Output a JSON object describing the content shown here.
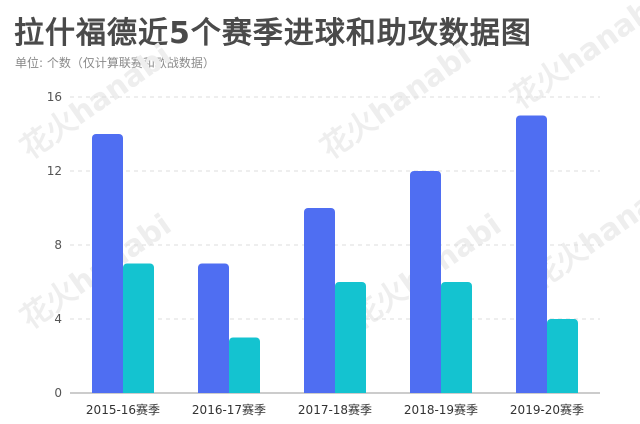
{
  "title": "拉什福德近5个赛季进球和助攻数据图",
  "subtitle": "单位: 个数（仅计算联赛和欧战数据）",
  "watermark": "花火hanabi",
  "colors": {
    "goals": "#4f6ef2",
    "assists": "#14c3d0",
    "grid": "#dddddd",
    "axis": "#999999",
    "title": "#4a4a4a"
  },
  "chart_data": {
    "type": "bar",
    "categories": [
      "2015-16赛季",
      "2016-17赛季",
      "2017-18赛季",
      "2018-19赛季",
      "2019-20赛季"
    ],
    "series": [
      {
        "values": [
          14,
          7,
          10,
          12,
          15
        ]
      },
      {
        "values": [
          7,
          3,
          6,
          6,
          4
        ]
      }
    ],
    "ylim": [
      0,
      16
    ],
    "yticks": [
      0,
      4,
      8,
      12,
      16
    ],
    "grid": true,
    "legend": "none"
  }
}
